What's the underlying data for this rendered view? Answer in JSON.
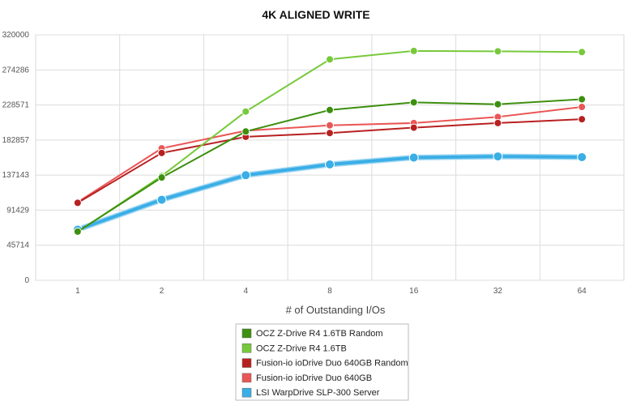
{
  "chart_data": {
    "type": "line",
    "title": "4K ALIGNED WRITE",
    "xlabel": "# of Outstanding I/Os",
    "ylabel": "",
    "categories": [
      "1",
      "2",
      "4",
      "8",
      "16",
      "32",
      "64"
    ],
    "yticks": [
      "0",
      "45714",
      "91429",
      "137143",
      "182857",
      "228571",
      "274286",
      "320000"
    ],
    "ylim": [
      0,
      320000
    ],
    "grid": true,
    "legend_position": "bottom-center",
    "series": [
      {
        "name": "OCZ Z-Drive R4 1.6TB Random",
        "color": "#3d8f0e",
        "values": [
          63500,
          134000,
          194000,
          222000,
          232000,
          229500,
          236000
        ]
      },
      {
        "name": "OCZ Z-Drive R4 1.6TB",
        "color": "#77c93a",
        "values": [
          63000,
          136000,
          220000,
          288000,
          299000,
          298500,
          297500
        ]
      },
      {
        "name": "Fusion-io ioDrive Duo 640GB Random",
        "color": "#b82020",
        "values": [
          101000,
          166000,
          187000,
          192000,
          199000,
          205000,
          210000
        ]
      },
      {
        "name": "Fusion-io ioDrive Duo 640GB",
        "color": "#ea5656",
        "values": [
          102000,
          172000,
          195000,
          202000,
          205000,
          213000,
          226000
        ]
      },
      {
        "name": "LSI WarpDrive SLP-300 Server",
        "color": "#3aaee6",
        "values": [
          66000,
          105000,
          137000,
          151000,
          160000,
          161500,
          160500
        ]
      }
    ]
  }
}
